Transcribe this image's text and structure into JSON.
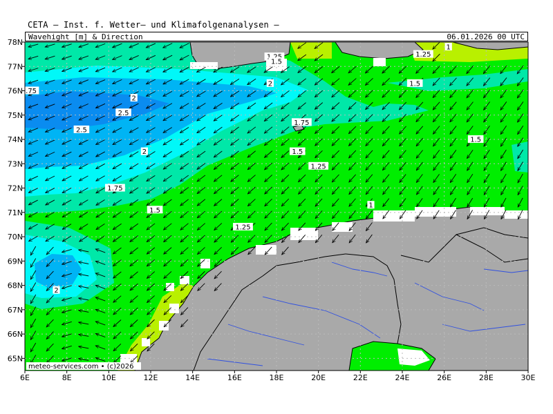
{
  "header": {
    "title": "CETA – Inst. f. Wetter– und Klimafolgenanalysen –",
    "variable": "Wavehight_[m]_&_Direction",
    "timestamp": "06.01.2026 00 UTC"
  },
  "footer": {
    "credit": "meteo-services.com • (c)2026"
  },
  "map": {
    "lon_range": [
      6,
      30
    ],
    "lat_range": [
      64.5,
      78
    ],
    "lon_ticks": [
      "6E",
      "8E",
      "10E",
      "12E",
      "14E",
      "16E",
      "18E",
      "20E",
      "22E",
      "24E",
      "26E",
      "28E",
      "30E"
    ],
    "lat_ticks": [
      "65N",
      "66N",
      "67N",
      "68N",
      "69N",
      "70N",
      "71N",
      "72N",
      "73N",
      "74N",
      "75N",
      "76N",
      "77N",
      "78N"
    ],
    "colors": {
      "wave_0_1": "#b9f000",
      "wave_1_1.5": "#00ee00",
      "wave_1.5_2": "#00e8a8",
      "wave_2_2.5": "#00f8f8",
      "wave_2.5_3": "#00b4f4",
      "wave_3_plus": "#0a8cf0",
      "land": "#a9a9a9",
      "rivers": "#3050e0"
    },
    "contour_labels": [
      {
        "text": ".75",
        "lon": 6.3,
        "lat": 76.0
      },
      {
        "text": "2",
        "lon": 11.2,
        "lat": 75.7
      },
      {
        "text": "2.5",
        "lon": 10.7,
        "lat": 75.1
      },
      {
        "text": "2.5",
        "lon": 8.7,
        "lat": 74.4
      },
      {
        "text": "2",
        "lon": 11.7,
        "lat": 73.5
      },
      {
        "text": "1.75",
        "lon": 10.3,
        "lat": 72.0
      },
      {
        "text": "1.5",
        "lon": 12.2,
        "lat": 71.1
      },
      {
        "text": "1.25",
        "lon": 16.4,
        "lat": 70.4
      },
      {
        "text": "2",
        "lon": 7.5,
        "lat": 67.8
      },
      {
        "text": "1.25",
        "lon": 17.9,
        "lat": 77.4
      },
      {
        "text": "1.5",
        "lon": 18.0,
        "lat": 77.2
      },
      {
        "text": "2",
        "lon": 17.7,
        "lat": 76.3
      },
      {
        "text": "1.75",
        "lon": 19.2,
        "lat": 74.7
      },
      {
        "text": "1.5",
        "lon": 19.0,
        "lat": 73.5
      },
      {
        "text": "1.25",
        "lon": 20.0,
        "lat": 72.9
      },
      {
        "text": "1.25",
        "lon": 25.0,
        "lat": 77.5
      },
      {
        "text": "1",
        "lon": 26.2,
        "lat": 77.8
      },
      {
        "text": "1.5",
        "lon": 24.6,
        "lat": 76.3
      },
      {
        "text": "1.5",
        "lon": 27.5,
        "lat": 74.0
      },
      {
        "text": "1",
        "lon": 22.5,
        "lat": 71.3
      }
    ]
  }
}
